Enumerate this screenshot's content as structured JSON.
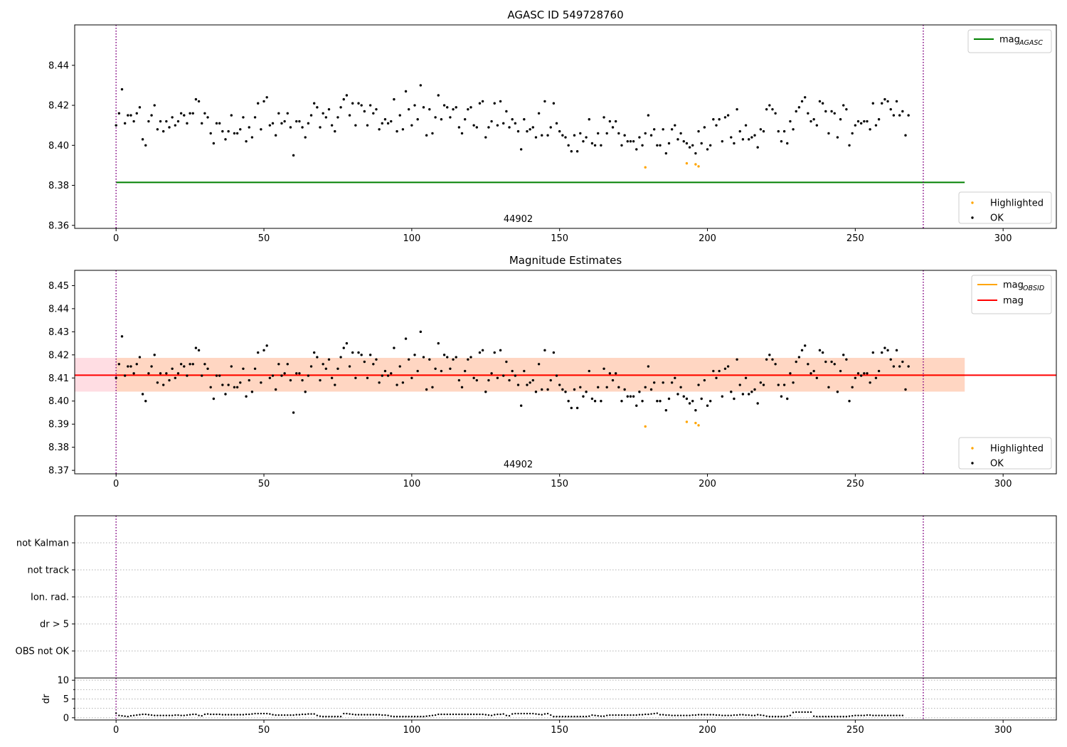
{
  "chart_data": [
    {
      "type": "scatter",
      "title": "AGASC ID 549728760",
      "xlabel": "",
      "ylabel": "",
      "xlim": [
        -14,
        318
      ],
      "ylim": [
        8.3585,
        8.4602
      ],
      "x_ticks": [
        0,
        50,
        100,
        150,
        200,
        250,
        300
      ],
      "x_tick_labels": [
        "0",
        "50",
        "100",
        "150",
        "200",
        "250",
        "300"
      ],
      "y_ticks": [
        8.36,
        8.38,
        8.4,
        8.42,
        8.44
      ],
      "y_tick_labels": [
        "8.36",
        "8.38",
        "8.40",
        "8.42",
        "8.44"
      ],
      "obsid_label": "44902",
      "obsid_label_x": 136,
      "vlines": [
        0,
        273
      ],
      "lines": [
        {
          "name": "mag_AGASC",
          "value": 8.3815,
          "x_range": [
            0,
            287
          ],
          "color": "#008000"
        }
      ],
      "legend_top": {
        "position": "top-right",
        "entries": [
          {
            "label": "mag",
            "sub": "AGASC",
            "color": "#008000"
          }
        ]
      },
      "legend_bottom": {
        "position": "lower-right",
        "entries": [
          {
            "label": "Highlighted",
            "color": "#ffa500"
          },
          {
            "label": "OK",
            "color": "#000000"
          }
        ]
      },
      "series": [
        {
          "name": "OK",
          "color": "#000000",
          "marker": "dot",
          "y": [
            8.41,
            8.416,
            8.428,
            8.411,
            8.415,
            8.415,
            8.412,
            8.416,
            8.419,
            8.403,
            8.4,
            8.412,
            8.415,
            8.42,
            8.408,
            8.412,
            8.407,
            8.412,
            8.409,
            8.414,
            8.41,
            8.412,
            8.416,
            8.415,
            8.411,
            8.416,
            8.416,
            8.423,
            8.422,
            8.411,
            8.416,
            8.414,
            8.406,
            8.401,
            8.411,
            8.411,
            8.407,
            8.403,
            8.407,
            8.415,
            8.406,
            8.406,
            8.408,
            8.414,
            8.402,
            8.409,
            8.404,
            8.414,
            8.421,
            8.408,
            8.422,
            8.424,
            8.41,
            8.411,
            8.405,
            8.416,
            8.411,
            8.412,
            8.416,
            8.409,
            8.395,
            8.412,
            8.412,
            8.409,
            8.404,
            8.411,
            8.415,
            8.421,
            8.419,
            8.409,
            8.416,
            8.414,
            8.418,
            8.41,
            8.407,
            8.414,
            8.419,
            8.423,
            8.425,
            8.415,
            8.421,
            8.41,
            8.421,
            8.42,
            8.417,
            8.41,
            8.42,
            8.416,
            8.418,
            8.408,
            8.411,
            8.413,
            8.411,
            8.412,
            8.423,
            8.407,
            8.415,
            8.408,
            8.427,
            8.418,
            8.41,
            8.42,
            8.413,
            8.43,
            8.419,
            8.405,
            8.418,
            8.406,
            8.414,
            8.425,
            8.413,
            8.42,
            8.419,
            8.414,
            8.418,
            8.419,
            8.409,
            8.406,
            8.413,
            8.418,
            8.419,
            8.41,
            8.409,
            8.421,
            8.422,
            8.404,
            8.409,
            8.412,
            8.421,
            8.41,
            8.422,
            8.411,
            8.417,
            8.409,
            8.413,
            8.411,
            8.407,
            8.398,
            8.413,
            8.407,
            8.408,
            8.409,
            8.404,
            8.416,
            8.405,
            8.422,
            8.405,
            8.409,
            8.421,
            8.411,
            8.407,
            8.405,
            8.404,
            8.4,
            8.397,
            8.405,
            8.397,
            8.406,
            8.402,
            8.404,
            8.413,
            8.401,
            8.4,
            8.406,
            8.4,
            8.414,
            8.406,
            8.412,
            8.409,
            8.412,
            8.406,
            8.4,
            8.405,
            8.402,
            8.402,
            8.402,
            8.398,
            8.404,
            8.4,
            8.406,
            8.415,
            8.405,
            8.408,
            8.4,
            8.4,
            8.408,
            8.396,
            8.401,
            8.408,
            8.41,
            8.403,
            8.406,
            8.402,
            8.401,
            8.399,
            8.4,
            8.396,
            8.407,
            8.401,
            8.409,
            8.398,
            8.4,
            8.413,
            8.41,
            8.413,
            8.402,
            8.414,
            8.415,
            8.404,
            8.401,
            8.418,
            8.407,
            8.403,
            8.41,
            8.403,
            8.404,
            8.405,
            8.399,
            8.408,
            8.407,
            8.418,
            8.42,
            8.418,
            8.416,
            8.407,
            8.402,
            8.407,
            8.401,
            8.412,
            8.408,
            8.417,
            8.419,
            8.422,
            8.424,
            8.416,
            8.412,
            8.413,
            8.41,
            8.422,
            8.421,
            8.417,
            8.406,
            8.417,
            8.416,
            8.404,
            8.413,
            8.42,
            8.418,
            8.4,
            8.406,
            8.41,
            8.412,
            8.411,
            8.412,
            8.412,
            8.408,
            8.421,
            8.41,
            8.413,
            8.421,
            8.423,
            8.422,
            8.418,
            8.415,
            8.422,
            8.415,
            8.417,
            8.405,
            8.415
          ]
        },
        {
          "name": "Highlighted",
          "color": "#ffa500",
          "marker": "dot",
          "x": [
            179,
            193,
            196,
            197
          ],
          "y": [
            8.389,
            8.391,
            8.3905,
            8.3895
          ]
        }
      ]
    },
    {
      "type": "scatter",
      "title": "Magnitude Estimates",
      "xlabel": "",
      "ylabel": "",
      "xlim": [
        -14,
        318
      ],
      "ylim": [
        8.3685,
        8.4566
      ],
      "x_ticks": [
        0,
        50,
        100,
        150,
        200,
        250,
        300
      ],
      "x_tick_labels": [
        "0",
        "50",
        "100",
        "150",
        "200",
        "250",
        "300"
      ],
      "y_ticks": [
        8.37,
        8.38,
        8.39,
        8.4,
        8.41,
        8.42,
        8.43,
        8.44,
        8.45
      ],
      "y_tick_labels": [
        "8.37",
        "8.38",
        "8.39",
        "8.40",
        "8.41",
        "8.42",
        "8.43",
        "8.44",
        "8.45"
      ],
      "obsid_label": "44902",
      "obsid_label_x": 136,
      "vlines": [
        0,
        273
      ],
      "bands": [
        {
          "name": "mag range",
          "low": 8.4041,
          "high": 8.4187,
          "x_range": [
            -14,
            287
          ],
          "color": "#ffdde3"
        },
        {
          "name": "mag_OBSID range",
          "low": 8.4041,
          "high": 8.4187,
          "x_range": [
            0,
            287
          ],
          "color": "#ffd6c2"
        }
      ],
      "lines": [
        {
          "name": "mag_OBSID",
          "value": 8.4112,
          "x_range": [
            0,
            287
          ],
          "color": "#ffa500"
        },
        {
          "name": "mag",
          "value": 8.4112,
          "x_range": [
            -14,
            318
          ],
          "color": "#ff0000"
        }
      ],
      "legend_top": {
        "position": "top-right",
        "entries": [
          {
            "label": "mag",
            "sub": "OBSID",
            "color": "#ffa500"
          },
          {
            "label": "mag",
            "sub": "",
            "color": "#ff0000"
          }
        ]
      },
      "legend_bottom": {
        "position": "lower-right",
        "entries": [
          {
            "label": "Highlighted",
            "color": "#ffa500"
          },
          {
            "label": "OK",
            "color": "#000000"
          }
        ]
      },
      "series_ref": "same points as AGASC ID 549728760 panel"
    },
    {
      "type": "scatter",
      "title": "",
      "xlim": [
        -14,
        318
      ],
      "categories": [
        "not Kalman",
        "not track",
        "Ion. rad.",
        "dr > 5",
        "OBS not OK"
      ],
      "vlines": [
        0,
        273
      ],
      "grid": "horizontal dotted"
    },
    {
      "type": "scatter",
      "title": "",
      "xlabel": "",
      "ylabel": "dr",
      "xlim": [
        -14,
        318
      ],
      "ylim": [
        -0.6,
        10.6
      ],
      "x_ticks": [
        0,
        50,
        100,
        150,
        200,
        250,
        300
      ],
      "x_tick_labels": [
        "0",
        "50",
        "100",
        "150",
        "200",
        "250",
        "300"
      ],
      "y_ticks": [
        0,
        5,
        10
      ],
      "y_tick_labels": [
        "0",
        "5",
        "10"
      ],
      "y_minor_ticks": [
        2.5,
        7.5
      ],
      "vlines": [
        0,
        273
      ],
      "series": [
        {
          "name": "dr",
          "color": "#000000",
          "marker": "dot",
          "y": [
            1.2,
            0.6,
            0.5,
            0.4,
            0.3,
            0.5,
            0.6,
            0.7,
            0.8,
            0.9,
            0.9,
            0.8,
            0.7,
            0.6,
            0.6,
            0.6,
            0.6,
            0.6,
            0.6,
            0.6,
            0.7,
            0.7,
            0.6,
            0.6,
            0.7,
            0.8,
            0.9,
            0.9,
            0.6,
            0.5,
            0.9,
            1.0,
            0.9,
            0.9,
            0.9,
            0.9,
            0.8,
            0.8,
            0.8,
            0.8,
            0.8,
            0.8,
            0.8,
            0.8,
            0.9,
            0.9,
            1.0,
            1.1,
            1.1,
            1.1,
            1.1,
            1.1,
            1.0,
            0.8,
            0.7,
            0.7,
            0.7,
            0.7,
            0.7,
            0.7,
            0.7,
            0.8,
            0.8,
            0.9,
            0.9,
            1.0,
            1.0,
            1.0,
            0.6,
            0.4,
            0.3,
            0.3,
            0.3,
            0.3,
            0.3,
            0.3,
            0.3,
            1.1,
            1.1,
            1.0,
            0.9,
            0.8,
            0.8,
            0.8,
            0.8,
            0.8,
            0.8,
            0.8,
            0.8,
            0.8,
            0.7,
            0.7,
            0.6,
            0.4,
            0.3,
            0.3,
            0.3,
            0.3,
            0.3,
            0.3,
            0.3,
            0.3,
            0.3,
            0.3,
            0.3,
            0.4,
            0.5,
            0.6,
            0.7,
            0.9,
            0.9,
            0.9,
            0.9,
            0.9,
            0.9,
            0.9,
            0.9,
            0.9,
            0.9,
            0.9,
            0.9,
            0.9,
            0.9,
            0.9,
            0.9,
            0.8,
            0.7,
            0.6,
            0.8,
            0.9,
            0.9,
            1.0,
            0.6,
            0.5,
            1.0,
            1.1,
            1.1,
            1.1,
            1.1,
            1.1,
            1.1,
            1.1,
            1.0,
            0.9,
            0.8,
            1.0,
            1.1,
            0.7,
            0.3,
            0.3,
            0.3,
            0.3,
            0.3,
            0.3,
            0.3,
            0.3,
            0.3,
            0.3,
            0.3,
            0.3,
            0.4,
            0.7,
            0.6,
            0.5,
            0.4,
            0.4,
            0.6,
            0.7,
            0.7,
            0.7,
            0.7,
            0.7,
            0.7,
            0.7,
            0.7,
            0.7,
            0.7,
            0.8,
            0.8,
            0.9,
            0.9,
            1.0,
            1.1,
            1.2,
            0.8,
            0.8,
            0.7,
            0.7,
            0.6,
            0.6,
            0.6,
            0.6,
            0.6,
            0.6,
            0.6,
            0.7,
            0.7,
            0.8,
            0.8,
            0.8,
            0.8,
            0.8,
            0.8,
            0.7,
            0.7,
            0.6,
            0.6,
            0.6,
            0.6,
            0.7,
            0.7,
            0.8,
            0.8,
            0.7,
            0.7,
            0.6,
            0.6,
            0.8,
            0.7,
            0.6,
            0.4,
            0.3,
            0.3,
            0.3,
            0.3,
            0.3,
            0.3,
            0.4,
            0.6,
            1.4,
            1.5,
            1.5,
            1.5,
            1.5,
            1.5,
            1.5,
            0.4,
            0.3,
            0.3,
            0.3,
            0.3,
            0.3,
            0.3,
            0.3,
            0.3,
            0.3,
            0.3,
            0.3,
            0.4,
            0.5,
            0.6,
            0.6,
            0.6,
            0.6,
            0.7,
            0.7,
            0.6,
            0.6,
            0.6,
            0.6,
            0.6,
            0.6,
            0.6,
            0.6,
            0.6,
            0.6,
            0.6
          ]
        }
      ]
    }
  ]
}
